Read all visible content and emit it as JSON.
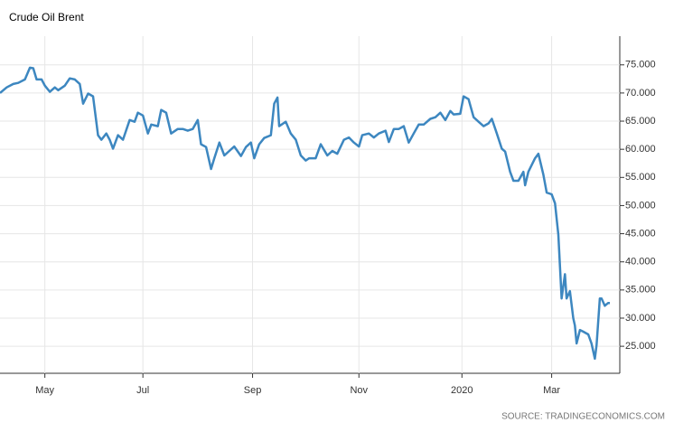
{
  "chart_data": {
    "type": "line",
    "title": "Crude Oil Brent",
    "source": "SOURCE: TRADINGECONOMICS.COM",
    "color": "#3d87c0",
    "grid": true,
    "x": [
      0,
      4,
      8,
      11,
      15,
      18,
      20,
      22,
      25,
      27,
      30,
      33,
      35,
      39,
      42,
      45,
      48,
      50,
      53,
      56,
      59,
      61,
      64,
      66,
      68,
      71,
      74,
      78,
      81,
      83,
      86,
      89,
      91,
      95,
      97,
      100,
      103,
      107,
      110,
      113,
      116,
      119,
      121,
      124,
      127,
      129,
      132,
      135,
      138,
      141,
      145,
      148,
      151,
      153,
      156,
      159,
      163,
      165,
      167,
      168,
      172,
      175,
      178,
      181,
      184,
      186,
      190,
      193,
      197,
      200,
      203,
      207,
      210,
      213,
      216,
      218,
      222,
      225,
      228,
      232,
      234,
      237,
      240,
      243,
      246,
      249,
      252,
      255,
      259,
      262,
      265,
      268,
      271,
      273,
      277,
      279,
      282,
      285,
      288,
      291,
      294,
      296,
      299,
      302,
      304,
      307,
      309,
      312,
      315,
      316,
      318,
      322,
      324,
      327,
      329,
      332,
      334,
      336,
      338,
      340,
      341,
      343,
      345,
      346,
      347,
      349,
      351,
      354,
      356,
      358,
      359,
      361,
      362,
      364,
      366,
      367
    ],
    "values": [
      70.0,
      71,
      71.6,
      71.8,
      72.4,
      74.5,
      74.4,
      72.4,
      72.4,
      71.3,
      70.2,
      71,
      70.5,
      71.3,
      72.6,
      72.4,
      71.6,
      68.1,
      69.9,
      69.4,
      62.5,
      61.7,
      62.8,
      61.7,
      60.1,
      62.5,
      61.7,
      65.2,
      64.9,
      66.5,
      66,
      62.8,
      64.4,
      64.1,
      67,
      66.5,
      62.8,
      63.6,
      63.6,
      63.3,
      63.6,
      65.2,
      60.9,
      60.4,
      56.5,
      58.4,
      61.2,
      58.9,
      59.7,
      60.5,
      58.8,
      60.4,
      61.2,
      58.4,
      60.9,
      62.0,
      62.5,
      68.1,
      69.2,
      64.1,
      64.9,
      62.8,
      61.7,
      58.9,
      58.0,
      58.4,
      58.4,
      60.9,
      58.9,
      59.7,
      59.2,
      61.7,
      62.1,
      61.2,
      60.5,
      62.5,
      62.8,
      62.1,
      62.8,
      63.3,
      61.3,
      63.6,
      63.6,
      64.1,
      61.2,
      62.8,
      64.4,
      64.4,
      65.4,
      65.7,
      66.5,
      65.2,
      66.8,
      66.2,
      66.3,
      69.4,
      68.9,
      65.7,
      64.9,
      64.1,
      64.6,
      65.4,
      62.8,
      60.1,
      59.6,
      56.0,
      54.4,
      54.4,
      56.0,
      53.6,
      56.0,
      58.4,
      59.2,
      55.5,
      52.3,
      52.0,
      50.4,
      44.8,
      33.5,
      37.8,
      33.5,
      34.8,
      30,
      28.7,
      25.5,
      27.9,
      27.6,
      27.1,
      25.5,
      22.8,
      25.2,
      33.5,
      33.5,
      32.2,
      32.7,
      32.7
    ],
    "xlim": [
      0,
      373
    ],
    "xticks": [
      {
        "value": 27,
        "label": "May"
      },
      {
        "value": 86,
        "label": "Jul"
      },
      {
        "value": 152,
        "label": "Sep"
      },
      {
        "value": 216,
        "label": "Nov"
      },
      {
        "value": 278,
        "label": "2020"
      },
      {
        "value": 332,
        "label": "Mar"
      }
    ],
    "ylim": [
      20.2,
      80.1
    ],
    "yticks": [
      {
        "value": 25,
        "label": "25.000"
      },
      {
        "value": 30,
        "label": "30.000"
      },
      {
        "value": 35,
        "label": "35.000"
      },
      {
        "value": 40,
        "label": "40.000"
      },
      {
        "value": 45,
        "label": "45.000"
      },
      {
        "value": 50,
        "label": "50.000"
      },
      {
        "value": 55,
        "label": "55.000"
      },
      {
        "value": 60,
        "label": "60.000"
      },
      {
        "value": 65,
        "label": "65.000"
      },
      {
        "value": 70,
        "label": "70.000"
      },
      {
        "value": 75,
        "label": "75.000"
      }
    ]
  }
}
